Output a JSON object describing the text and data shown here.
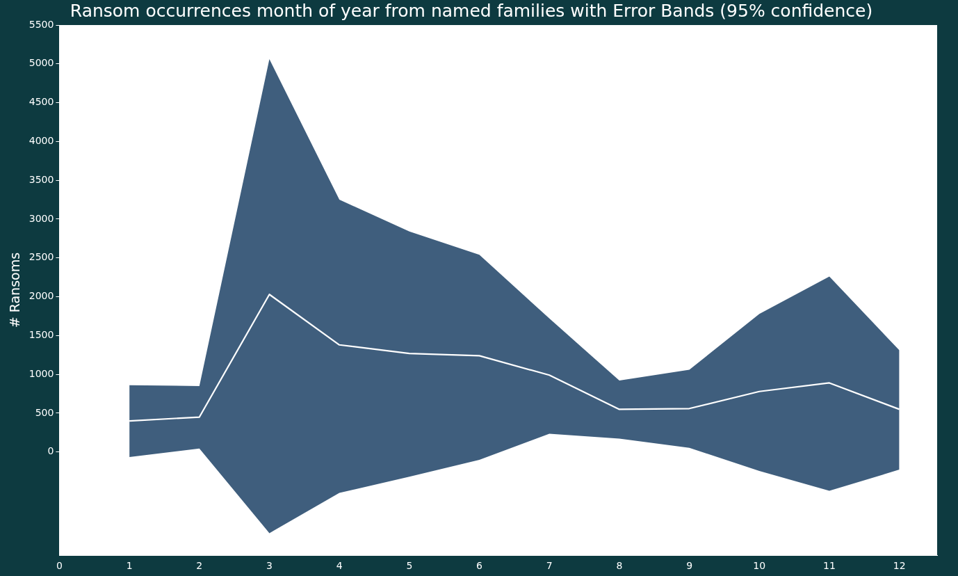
{
  "chart_data": {
    "type": "line",
    "title": "Ransom occurrences month of year from named families with Error Bands (95% confidence)",
    "ylabel": "# Ransoms",
    "x": [
      1,
      2,
      3,
      4,
      5,
      6,
      7,
      8,
      9,
      10,
      11,
      12
    ],
    "series": [
      {
        "color": "#ffffff",
        "values": [
          400,
          450,
          2030,
          1380,
          1270,
          1240,
          990,
          550,
          560,
          780,
          890,
          550
        ],
        "lower": [
          -64,
          45,
          -1045,
          -527,
          -318,
          -100,
          236,
          173,
          55,
          -245,
          -500,
          -227
        ],
        "upper": [
          860,
          850,
          5060,
          3250,
          2840,
          2540,
          1720,
          920,
          1060,
          1780,
          2260,
          1310
        ]
      }
    ],
    "xlim": [
      0,
      12.54
    ],
    "xticks": [
      0,
      1,
      2,
      3,
      4,
      5,
      6,
      7,
      8,
      9,
      10,
      11,
      12
    ],
    "ylim": [
      -1330,
      5500
    ],
    "yticks": [
      0,
      500,
      1000,
      1500,
      2000,
      2500,
      3000,
      3500,
      4000,
      4500,
      5000,
      5500
    ],
    "grid": false,
    "legend": false
  }
}
